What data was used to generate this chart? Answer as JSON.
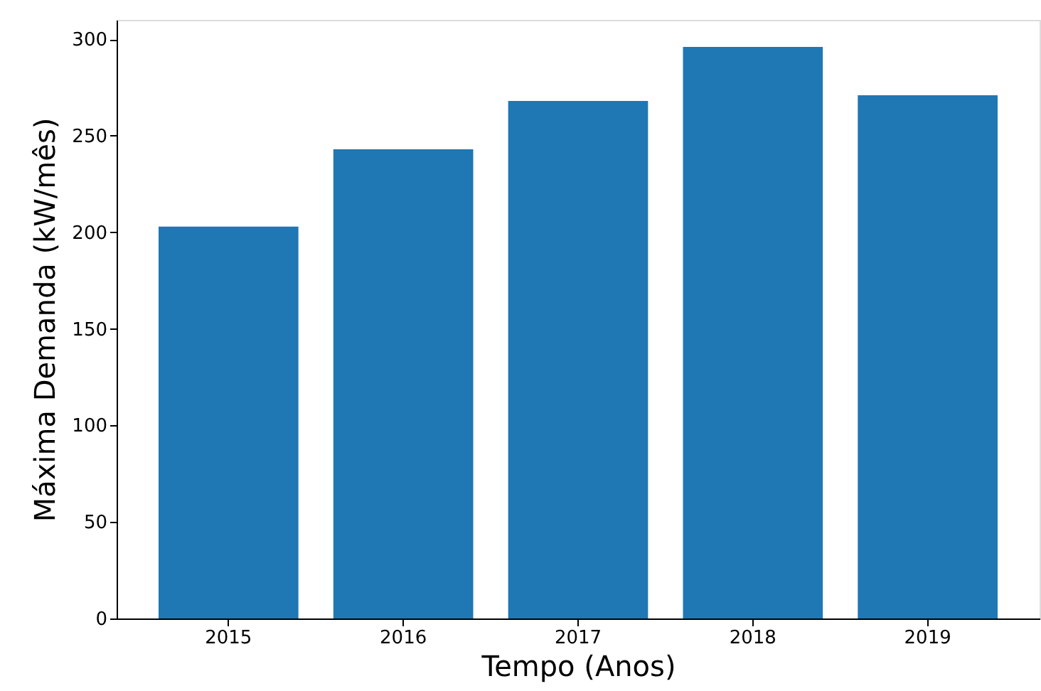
{
  "chart_data": {
    "type": "bar",
    "xlabel": "Tempo (Anos)",
    "ylabel": "Máxima Demanda (kW/mês)",
    "categories": [
      "2015",
      "2016",
      "2017",
      "2018",
      "2019"
    ],
    "values": [
      203,
      243,
      268,
      296,
      271
    ],
    "color": "#1f77b4",
    "ylim": [
      0,
      310
    ],
    "yticks": [
      0,
      50,
      100,
      150,
      200,
      250,
      300
    ],
    "grid": false
  }
}
